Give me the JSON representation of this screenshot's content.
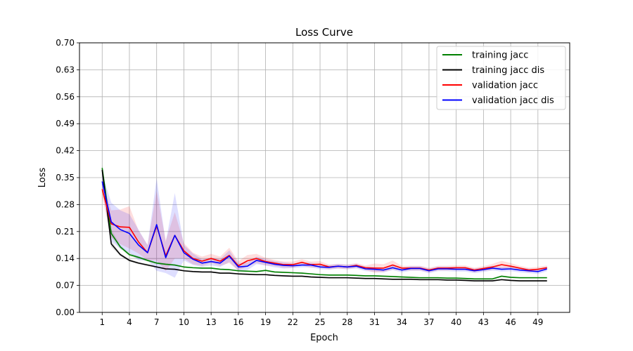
{
  "chart_data": {
    "type": "line",
    "title": "Loss Curve",
    "xlabel": "Epoch",
    "ylabel": "Loss",
    "xlim": [
      -1.5,
      52.5
    ],
    "ylim": [
      0.0,
      0.7
    ],
    "xticks": [
      1,
      4,
      7,
      10,
      13,
      16,
      19,
      22,
      25,
      28,
      31,
      34,
      37,
      40,
      43,
      46,
      49
    ],
    "yticks": [
      "0.00",
      "0.07",
      "0.14",
      "0.21",
      "0.28",
      "0.35",
      "0.42",
      "0.49",
      "0.56",
      "0.63",
      "0.70"
    ],
    "grid": true,
    "legend_position": "top-right",
    "x": [
      1,
      2,
      3,
      4,
      5,
      6,
      7,
      8,
      9,
      10,
      11,
      12,
      13,
      14,
      15,
      16,
      17,
      18,
      19,
      20,
      21,
      22,
      23,
      24,
      25,
      26,
      27,
      28,
      29,
      30,
      31,
      32,
      33,
      34,
      35,
      36,
      37,
      38,
      39,
      40,
      41,
      42,
      43,
      44,
      45,
      46,
      47,
      48,
      49,
      50
    ],
    "series": [
      {
        "name": "training jacc",
        "color": "#008000",
        "values": [
          0.375,
          0.205,
          0.17,
          0.15,
          0.143,
          0.135,
          0.128,
          0.125,
          0.123,
          0.118,
          0.116,
          0.115,
          0.115,
          0.112,
          0.111,
          0.108,
          0.107,
          0.106,
          0.109,
          0.105,
          0.104,
          0.103,
          0.102,
          0.1,
          0.098,
          0.097,
          0.097,
          0.097,
          0.096,
          0.095,
          0.095,
          0.094,
          0.093,
          0.092,
          0.091,
          0.09,
          0.09,
          0.09,
          0.089,
          0.089,
          0.088,
          0.087,
          0.087,
          0.087,
          0.094,
          0.091,
          0.09,
          0.09,
          0.09,
          0.09
        ],
        "band": [
          0.01,
          0.01,
          0.005,
          0.004,
          0.003,
          0.003,
          0.003,
          0.003,
          0.002,
          0.002,
          0.002,
          0.002,
          0.002,
          0.002,
          0.002,
          0.002,
          0.002,
          0.002,
          0.002,
          0.002,
          0.002,
          0.002,
          0.002,
          0.002,
          0.002,
          0.002,
          0.002,
          0.002,
          0.002,
          0.002,
          0.002,
          0.002,
          0.002,
          0.002,
          0.002,
          0.002,
          0.002,
          0.002,
          0.002,
          0.002,
          0.002,
          0.002,
          0.002,
          0.002,
          0.002,
          0.002,
          0.002,
          0.002,
          0.002,
          0.002
        ]
      },
      {
        "name": "training jacc dis",
        "color": "#000000",
        "values": [
          0.37,
          0.178,
          0.15,
          0.135,
          0.128,
          0.123,
          0.118,
          0.113,
          0.112,
          0.108,
          0.106,
          0.105,
          0.105,
          0.102,
          0.102,
          0.1,
          0.099,
          0.098,
          0.098,
          0.096,
          0.095,
          0.094,
          0.094,
          0.092,
          0.091,
          0.09,
          0.09,
          0.09,
          0.089,
          0.088,
          0.088,
          0.087,
          0.086,
          0.086,
          0.086,
          0.085,
          0.085,
          0.085,
          0.084,
          0.084,
          0.083,
          0.082,
          0.082,
          0.082,
          0.085,
          0.083,
          0.082,
          0.082,
          0.082,
          0.082
        ],
        "band": [
          0.01,
          0.008,
          0.004,
          0.003,
          0.003,
          0.003,
          0.002,
          0.002,
          0.002,
          0.002,
          0.002,
          0.002,
          0.002,
          0.002,
          0.002,
          0.002,
          0.002,
          0.002,
          0.002,
          0.002,
          0.002,
          0.002,
          0.002,
          0.002,
          0.002,
          0.002,
          0.002,
          0.002,
          0.002,
          0.002,
          0.002,
          0.002,
          0.002,
          0.002,
          0.002,
          0.002,
          0.002,
          0.002,
          0.002,
          0.002,
          0.002,
          0.002,
          0.002,
          0.002,
          0.002,
          0.002,
          0.002,
          0.002,
          0.002,
          0.002
        ]
      },
      {
        "name": "validation jacc",
        "color": "#ff0000",
        "values": [
          0.32,
          0.23,
          0.222,
          0.221,
          0.183,
          0.155,
          0.225,
          0.147,
          0.2,
          0.16,
          0.14,
          0.133,
          0.14,
          0.133,
          0.148,
          0.121,
          0.134,
          0.14,
          0.132,
          0.128,
          0.124,
          0.124,
          0.13,
          0.124,
          0.125,
          0.118,
          0.12,
          0.118,
          0.122,
          0.116,
          0.115,
          0.115,
          0.123,
          0.115,
          0.115,
          0.115,
          0.11,
          0.115,
          0.115,
          0.116,
          0.116,
          0.11,
          0.114,
          0.118,
          0.124,
          0.12,
          0.115,
          0.11,
          0.112,
          0.116
        ],
        "band": [
          0.02,
          0.035,
          0.045,
          0.055,
          0.03,
          0.02,
          0.09,
          0.04,
          0.06,
          0.02,
          0.015,
          0.012,
          0.012,
          0.012,
          0.02,
          0.012,
          0.015,
          0.012,
          0.01,
          0.008,
          0.008,
          0.008,
          0.008,
          0.008,
          0.008,
          0.006,
          0.006,
          0.006,
          0.006,
          0.006,
          0.012,
          0.01,
          0.012,
          0.006,
          0.006,
          0.006,
          0.006,
          0.006,
          0.006,
          0.006,
          0.006,
          0.006,
          0.006,
          0.008,
          0.01,
          0.008,
          0.006,
          0.006,
          0.006,
          0.006
        ]
      },
      {
        "name": "validation jacc dis",
        "color": "#0000ff",
        "values": [
          0.34,
          0.235,
          0.215,
          0.205,
          0.175,
          0.155,
          0.228,
          0.142,
          0.2,
          0.155,
          0.138,
          0.128,
          0.132,
          0.128,
          0.146,
          0.118,
          0.12,
          0.135,
          0.13,
          0.125,
          0.122,
          0.121,
          0.123,
          0.123,
          0.118,
          0.117,
          0.12,
          0.118,
          0.12,
          0.113,
          0.112,
          0.11,
          0.116,
          0.11,
          0.114,
          0.114,
          0.108,
          0.113,
          0.113,
          0.112,
          0.112,
          0.108,
          0.111,
          0.115,
          0.112,
          0.113,
          0.11,
          0.108,
          0.106,
          0.113
        ],
        "band": [
          0.02,
          0.05,
          0.05,
          0.05,
          0.04,
          0.02,
          0.12,
          0.04,
          0.11,
          0.02,
          0.015,
          0.01,
          0.01,
          0.01,
          0.015,
          0.01,
          0.01,
          0.01,
          0.008,
          0.008,
          0.008,
          0.006,
          0.006,
          0.006,
          0.006,
          0.006,
          0.006,
          0.006,
          0.006,
          0.006,
          0.006,
          0.006,
          0.006,
          0.006,
          0.006,
          0.006,
          0.006,
          0.006,
          0.006,
          0.006,
          0.006,
          0.006,
          0.006,
          0.006,
          0.006,
          0.006,
          0.006,
          0.006,
          0.006,
          0.006
        ]
      }
    ]
  }
}
